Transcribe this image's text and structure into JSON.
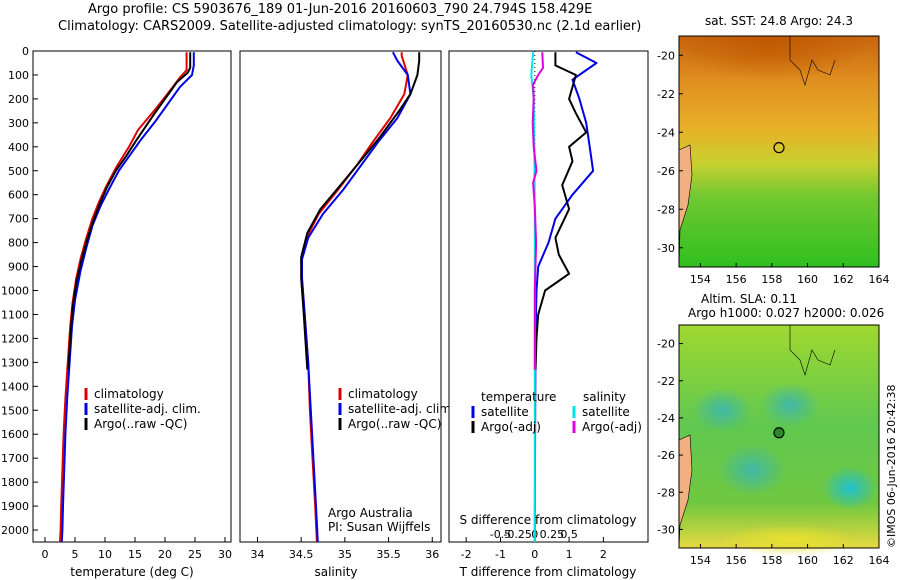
{
  "header": {
    "line1": "Argo profile: CS 5903676_189 01-Jun-2016 20160603_790 24.794S 158.429E",
    "line2": "Climatology: CARS2009. Satellite-adjusted climatology: synTS_20160530.nc (2.1d earlier)"
  },
  "watermark": "©IMOS 06-Jun-2016 20:42:38",
  "credit": {
    "line1": "Argo Australia",
    "line2": "PI: Susan Wijffels"
  },
  "colors": {
    "climatology": "#e00000",
    "satellite": "#0000e6",
    "argo": "#000000",
    "salinity_satellite": "#00e6e6",
    "salinity_argo": "#e000e0"
  },
  "chart_data": [
    {
      "type": "line",
      "xlabel": "temperature (deg C)",
      "ylabel": "",
      "xlim": [
        -2,
        31
      ],
      "ylim": [
        2050,
        0
      ],
      "y_inverted": true,
      "xticks": [
        0,
        5,
        10,
        15,
        20,
        25,
        30
      ],
      "yticks": [
        0,
        100,
        200,
        300,
        400,
        500,
        600,
        700,
        800,
        900,
        1000,
        1100,
        1200,
        1300,
        1400,
        1500,
        1600,
        1700,
        1800,
        1900,
        2000
      ],
      "legend": [
        "climatology",
        "satellite-adj. clim.",
        "Argo(..raw -QC)"
      ],
      "series": [
        {
          "name": "climatology",
          "color": "#e00000",
          "points": [
            [
              23.6,
              5
            ],
            [
              23.6,
              80
            ],
            [
              22.5,
              110
            ],
            [
              21,
              160
            ],
            [
              18.5,
              240
            ],
            [
              15.5,
              330
            ],
            [
              14,
              400
            ],
            [
              12,
              480
            ],
            [
              10.3,
              560
            ],
            [
              9,
              630
            ],
            [
              7.9,
              700
            ],
            [
              6.9,
              780
            ],
            [
              6,
              860
            ],
            [
              5.2,
              950
            ],
            [
              4.6,
              1050
            ],
            [
              4.2,
              1150
            ],
            [
              3.8,
              1300
            ],
            [
              3.4,
              1450
            ],
            [
              3.1,
              1600
            ],
            [
              2.9,
              1750
            ],
            [
              2.7,
              1900
            ],
            [
              2.6,
              2000
            ],
            [
              2.5,
              2050
            ]
          ]
        },
        {
          "name": "satellite-adj. clim.",
          "color": "#0000e6",
          "points": [
            [
              24.8,
              5
            ],
            [
              24.8,
              60
            ],
            [
              24.5,
              100
            ],
            [
              22.5,
              150
            ],
            [
              20.5,
              220
            ],
            [
              18.5,
              290
            ],
            [
              16,
              370
            ],
            [
              14,
              440
            ],
            [
              12.3,
              500
            ],
            [
              10.6,
              580
            ],
            [
              9.2,
              650
            ],
            [
              7.9,
              730
            ],
            [
              6.9,
              820
            ],
            [
              5.9,
              920
            ],
            [
              5,
              1040
            ],
            [
              4.5,
              1150
            ],
            [
              4.1,
              1300
            ],
            [
              3.7,
              1450
            ],
            [
              3.4,
              1600
            ],
            [
              3.2,
              1750
            ],
            [
              3,
              1900
            ],
            [
              2.9,
              2000
            ],
            [
              2.8,
              2050
            ]
          ]
        },
        {
          "name": "Argo(..raw -QC)",
          "color": "#000000",
          "points": [
            [
              24.2,
              5
            ],
            [
              24.2,
              70
            ],
            [
              23.8,
              90
            ],
            [
              22,
              130
            ],
            [
              20,
              200
            ],
            [
              18,
              270
            ],
            [
              15.3,
              370
            ],
            [
              13.5,
              440
            ],
            [
              11.8,
              500
            ],
            [
              10.3,
              570
            ],
            [
              9.1,
              640
            ],
            [
              7.9,
              720
            ],
            [
              6.9,
              800
            ],
            [
              6,
              880
            ],
            [
              5.2,
              970
            ],
            [
              4.6,
              1070
            ],
            [
              4.2,
              1200
            ],
            [
              3.9,
              1330
            ]
          ]
        }
      ]
    },
    {
      "type": "line",
      "xlabel": "salinity",
      "xlim": [
        33.8,
        36.1
      ],
      "ylim": [
        2050,
        0
      ],
      "y_inverted": true,
      "xticks": [
        34,
        34.5,
        35,
        35.5,
        36
      ],
      "legend": [
        "climatology",
        "satellite-adj. clim.",
        "Argo(..raw -QC)"
      ],
      "series": [
        {
          "name": "climatology",
          "color": "#e00000",
          "points": [
            [
              35.65,
              5
            ],
            [
              35.65,
              20
            ],
            [
              35.72,
              100
            ],
            [
              35.68,
              180
            ],
            [
              35.52,
              280
            ],
            [
              35.32,
              380
            ],
            [
              35.15,
              470
            ],
            [
              34.92,
              580
            ],
            [
              34.7,
              680
            ],
            [
              34.56,
              780
            ],
            [
              34.5,
              870
            ],
            [
              34.51,
              950
            ],
            [
              34.54,
              1100
            ],
            [
              34.58,
              1300
            ],
            [
              34.6,
              1500
            ],
            [
              34.63,
              1700
            ],
            [
              34.66,
              1900
            ],
            [
              34.68,
              2050
            ]
          ]
        },
        {
          "name": "satellite-adj. clim.",
          "color": "#0000e6",
          "points": [
            [
              35.55,
              5
            ],
            [
              35.6,
              40
            ],
            [
              35.72,
              100
            ],
            [
              35.75,
              180
            ],
            [
              35.6,
              280
            ],
            [
              35.38,
              380
            ],
            [
              35.2,
              470
            ],
            [
              34.98,
              580
            ],
            [
              34.75,
              680
            ],
            [
              34.58,
              780
            ],
            [
              34.51,
              870
            ],
            [
              34.51,
              950
            ],
            [
              34.54,
              1100
            ],
            [
              34.58,
              1300
            ],
            [
              34.61,
              1500
            ],
            [
              34.64,
              1700
            ],
            [
              34.67,
              1900
            ],
            [
              34.69,
              2050
            ]
          ]
        },
        {
          "name": "Argo(..raw -QC)",
          "color": "#000000",
          "points": [
            [
              35.85,
              5
            ],
            [
              35.85,
              40
            ],
            [
              35.83,
              100
            ],
            [
              35.75,
              180
            ],
            [
              35.62,
              250
            ],
            [
              35.4,
              360
            ],
            [
              35.2,
              450
            ],
            [
              34.95,
              560
            ],
            [
              34.72,
              660
            ],
            [
              34.57,
              760
            ],
            [
              34.5,
              860
            ],
            [
              34.5,
              950
            ],
            [
              34.53,
              1100
            ],
            [
              34.57,
              1330
            ]
          ]
        }
      ]
    },
    {
      "type": "line",
      "xlabel": "T difference from climatology",
      "xlabel_top": "S difference from climatology",
      "xlim": [
        -2.5,
        3.3
      ],
      "ylim": [
        2050,
        0
      ],
      "y_inverted": true,
      "xticks": [
        -2,
        -1,
        0,
        1,
        2
      ],
      "xticks_top": [
        "-0.5",
        "-0.25",
        "0",
        "0.25",
        "0.5"
      ],
      "legend": {
        "temperature_title": "temperature",
        "salinity_title": "salinity",
        "satellite": "satellite",
        "argo": "Argo(-adj)"
      },
      "series": [
        {
          "name": "temperature satellite",
          "color": "#0000e6",
          "points": [
            [
              1.2,
              5
            ],
            [
              1.8,
              50
            ],
            [
              1.1,
              120
            ],
            [
              1.3,
              200
            ],
            [
              1.5,
              300
            ],
            [
              1.6,
              400
            ],
            [
              1.7,
              500
            ],
            [
              1.1,
              600
            ],
            [
              0.6,
              700
            ],
            [
              0.4,
              800
            ],
            [
              0.1,
              900
            ],
            [
              0.05,
              1000
            ],
            [
              0.02,
              1200
            ],
            [
              0.01,
              1600
            ],
            [
              0,
              2050
            ]
          ]
        },
        {
          "name": "temperature Argo(-adj)",
          "color": "#000000",
          "points": [
            [
              0.6,
              5
            ],
            [
              0.6,
              60
            ],
            [
              1.2,
              100
            ],
            [
              1.1,
              150
            ],
            [
              1.0,
              200
            ],
            [
              1.2,
              260
            ],
            [
              1.5,
              340
            ],
            [
              1.0,
              400
            ],
            [
              1.1,
              460
            ],
            [
              0.8,
              560
            ],
            [
              1.0,
              660
            ],
            [
              0.6,
              780
            ],
            [
              0.7,
              850
            ],
            [
              1.0,
              930
            ],
            [
              0.3,
              1000
            ],
            [
              0.1,
              1100
            ],
            [
              0.05,
              1200
            ],
            [
              0.02,
              1330
            ]
          ]
        },
        {
          "name": "salinity satellite",
          "color": "#00e6e6",
          "points": [
            [
              -0.05,
              5
            ],
            [
              -0.1,
              100
            ],
            [
              -0.03,
              200
            ],
            [
              -0.02,
              300
            ],
            [
              -0.01,
              450
            ],
            [
              0,
              700
            ],
            [
              0,
              1000
            ],
            [
              0,
              1500
            ],
            [
              0,
              2050
            ]
          ]
        },
        {
          "name": "salinity Argo(-adj)",
          "color": "#e000e0",
          "points": [
            [
              0.22,
              5
            ],
            [
              0.24,
              70
            ],
            [
              0.1,
              100
            ],
            [
              -0.05,
              140
            ],
            [
              -0.03,
              200
            ],
            [
              -0.06,
              300
            ],
            [
              -0.03,
              400
            ],
            [
              0.05,
              500
            ],
            [
              -0.05,
              550
            ],
            [
              0,
              650
            ],
            [
              0.04,
              800
            ],
            [
              0.02,
              900
            ],
            [
              0,
              1000
            ],
            [
              0,
              1330
            ]
          ]
        }
      ]
    },
    {
      "type": "heatmap",
      "title": "sat. SST: 24.8  Argo: 24.3",
      "xlim": [
        152.8,
        164
      ],
      "ylim": [
        -31,
        -19
      ],
      "xticks": [
        154,
        156,
        158,
        160,
        162,
        164
      ],
      "yticks": [
        -20,
        -22,
        -24,
        -26,
        -28,
        -30
      ],
      "marker": {
        "lon": 158.4,
        "lat": -24.8
      }
    },
    {
      "type": "heatmap",
      "title_line1": "Altim. SLA: 0.11",
      "title_line2": "Argo h1000: 0.027 h2000: 0.026",
      "xlim": [
        152.8,
        164
      ],
      "ylim": [
        -31,
        -19
      ],
      "xticks": [
        154,
        156,
        158,
        160,
        162,
        164
      ],
      "yticks": [
        -20,
        -22,
        -24,
        -26,
        -28,
        -30
      ],
      "marker": {
        "lon": 158.4,
        "lat": -24.8
      }
    }
  ]
}
